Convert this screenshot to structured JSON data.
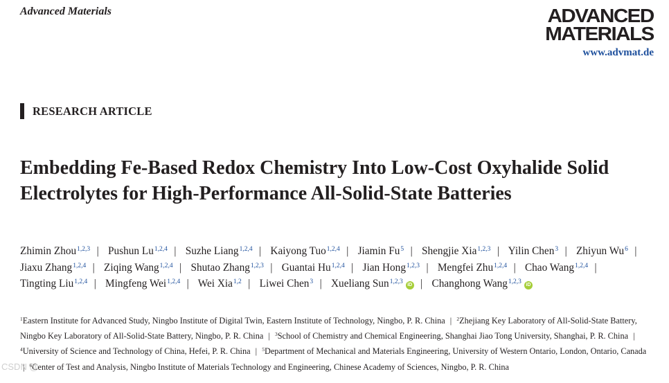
{
  "header": {
    "journal": "Advanced Materials",
    "logo_line1": "ADVANCED",
    "logo_line2": "MATERIALS",
    "url": "www.advmat.de"
  },
  "section_label": "RESEARCH ARTICLE",
  "title": "Embedding Fe-Based Redox Chemistry Into Low-Cost Oxyhalide Solid Electrolytes for High-Performance All-Solid-State Batteries",
  "authors": [
    {
      "name": "Zhimin Zhou",
      "aff": "1,2,3"
    },
    {
      "name": "Pushun Lu",
      "aff": "1,2,4"
    },
    {
      "name": "Suzhe Liang",
      "aff": "1,2,4"
    },
    {
      "name": "Kaiyong Tuo",
      "aff": "1,2,4"
    },
    {
      "name": "Jiamin Fu",
      "aff": "5"
    },
    {
      "name": "Shengjie Xia",
      "aff": "1,2,3"
    },
    {
      "name": "Yilin Chen",
      "aff": "3"
    },
    {
      "name": "Zhiyun Wu",
      "aff": "6"
    },
    {
      "name": "Jiaxu Zhang",
      "aff": "1,2,4"
    },
    {
      "name": "Ziqing Wang",
      "aff": "1,2,4"
    },
    {
      "name": "Shutao Zhang",
      "aff": "1,2,3"
    },
    {
      "name": "Guantai Hu",
      "aff": "1,2,4"
    },
    {
      "name": "Jian Hong",
      "aff": "1,2,3"
    },
    {
      "name": "Mengfei Zhu",
      "aff": "1,2,4"
    },
    {
      "name": "Chao Wang",
      "aff": "1,2,4"
    },
    {
      "name": "Tingting Liu",
      "aff": "1,2,4"
    },
    {
      "name": "Mingfeng Wei",
      "aff": "1,2,4"
    },
    {
      "name": "Wei Xia",
      "aff": "1,2"
    },
    {
      "name": "Liwei Chen",
      "aff": "3"
    },
    {
      "name": "Xueliang Sun",
      "aff": "1,2,3",
      "orcid": true
    },
    {
      "name": "Changhong Wang",
      "aff": "1,2,3",
      "orcid": true
    }
  ],
  "orcid_icon": "orcid-icon",
  "orcid_color": "#a6ce39",
  "link_color": "#1d4f9c",
  "affiliations": [
    {
      "num": "1",
      "text": "Eastern Institute for Advanced Study, Ningbo Institute of Digital Twin, Eastern Institute of Technology, Ningbo, P. R. China"
    },
    {
      "num": "2",
      "text": "Zhejiang Key Laboratory of All-Solid-State Battery, Ningbo Key Laboratory of All-Solid-State Battery, Ningbo, P. R. China"
    },
    {
      "num": "3",
      "text": "School of Chemistry and Chemical Engineering, Shanghai Jiao Tong University, Shanghai, P. R. China"
    },
    {
      "num": "4",
      "text": "University of Science and Technology of China, Hefei, P. R. China"
    },
    {
      "num": "5",
      "text": "Department of Mechanical and Materials Engineering, University of Western Ontario, London, Ontario, Canada"
    },
    {
      "num": "6",
      "text": "Center of Test and Analysis, Ningbo Institute of Materials Technology and Engineering, Chinese Academy of Sciences, Ningbo, P. R. China"
    }
  ],
  "watermark": "CSDN @"
}
